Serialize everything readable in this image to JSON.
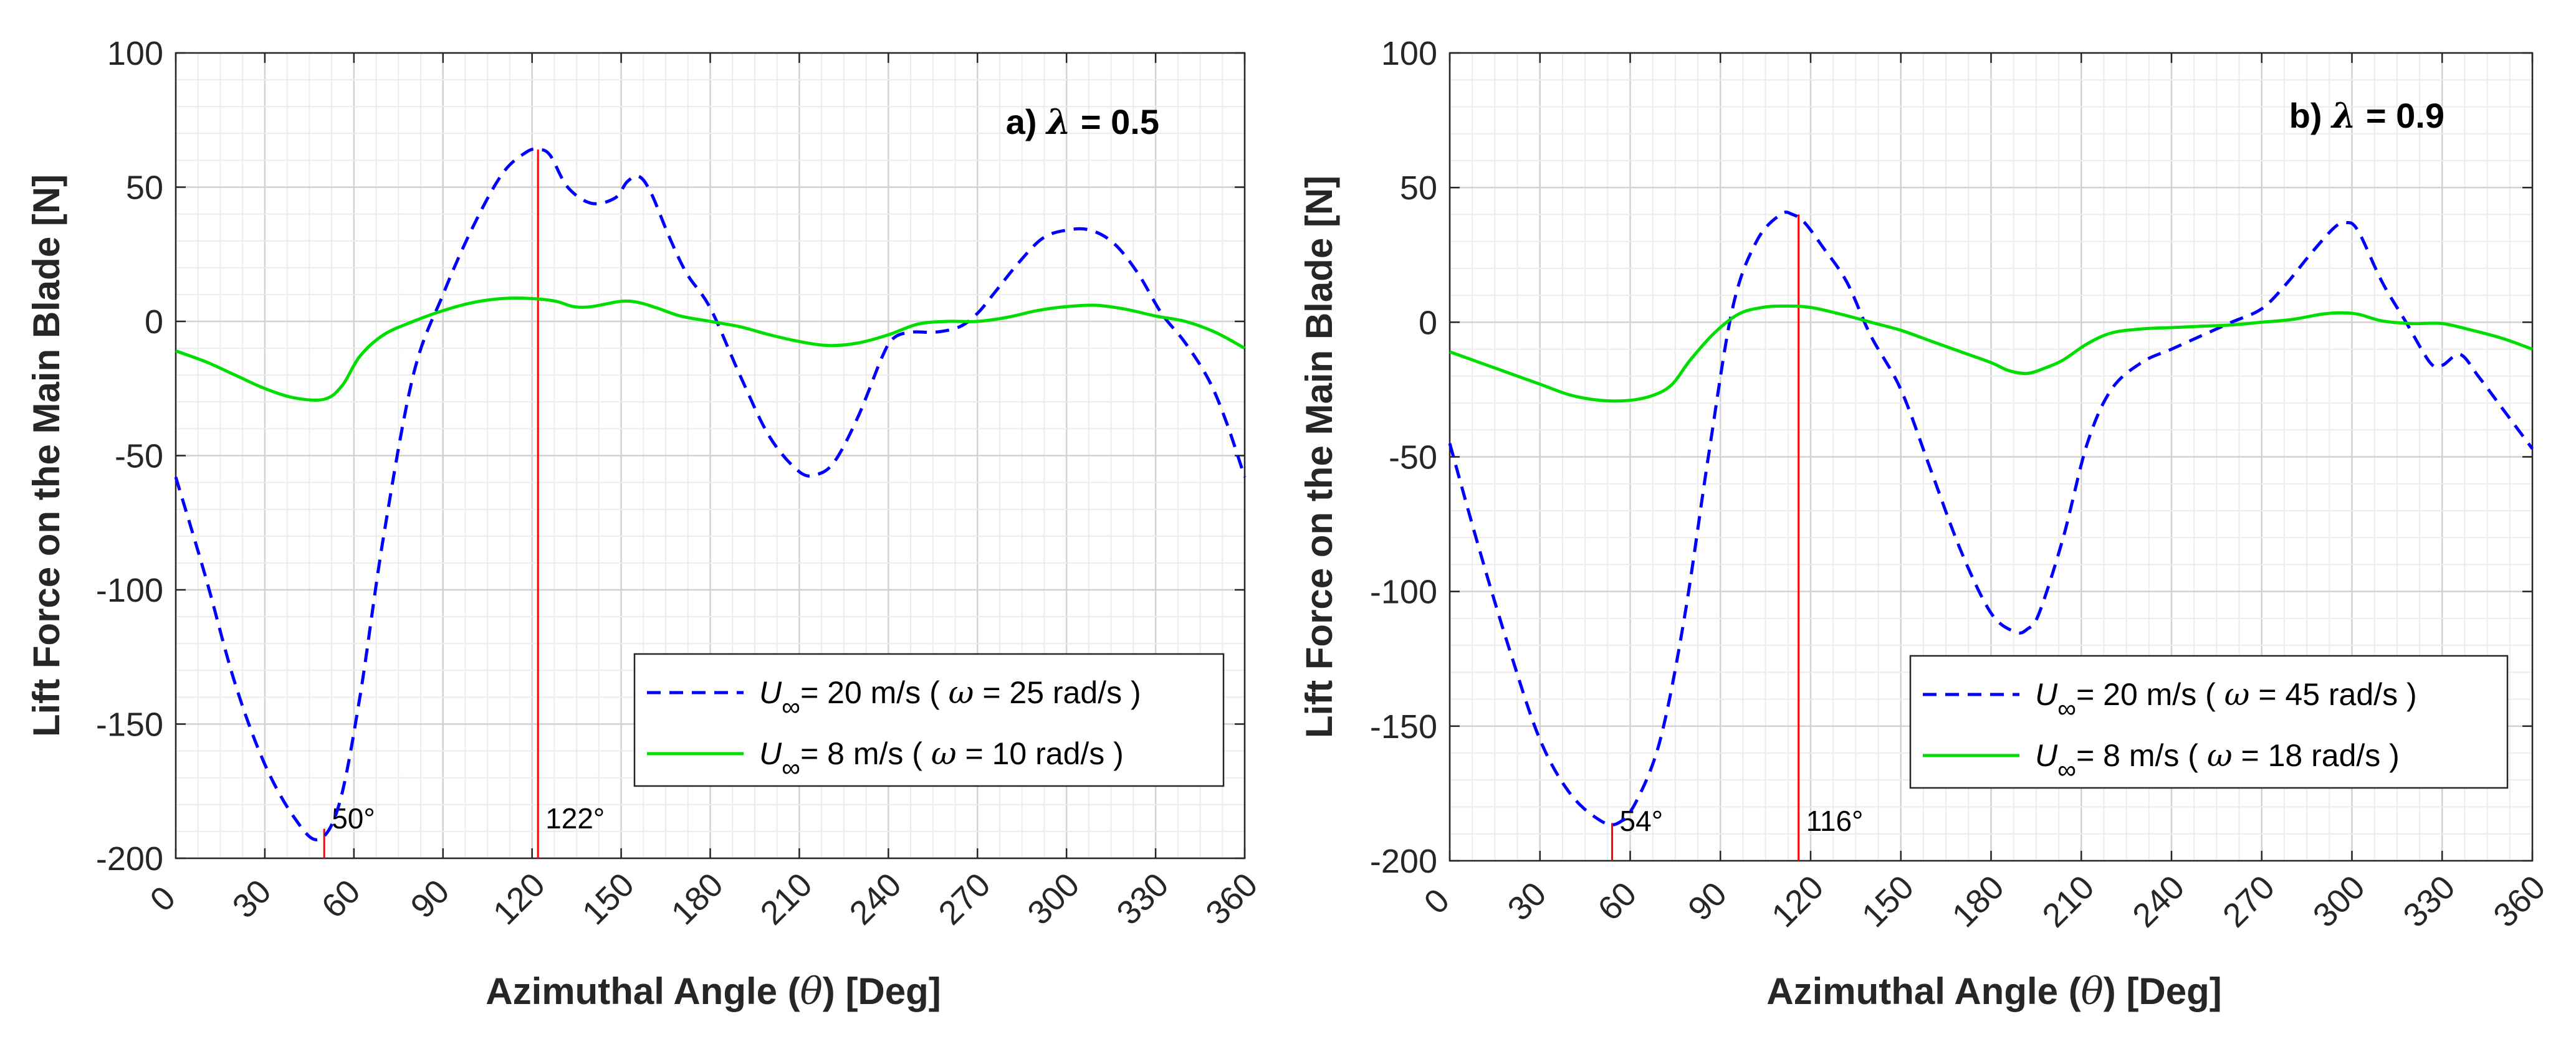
{
  "chart_data": [
    {
      "type": "line",
      "panel_label": "a)",
      "lambda_symbol": "λ",
      "lambda_text": "= 0.5",
      "xlabel_main": "Azimuthal Angle (",
      "xlabel_theta": "θ",
      "xlabel_unit": ")  [Deg]",
      "ylabel": "Lift Force on the Main Blade [N]",
      "xlim": [
        0,
        360
      ],
      "ylim": [
        -200,
        100
      ],
      "x_ticks": [
        0,
        30,
        60,
        90,
        120,
        150,
        180,
        210,
        240,
        270,
        300,
        330,
        360
      ],
      "x_tick_labels": [
        "0",
        "30",
        "60",
        "90",
        "120",
        "150",
        "180",
        "210",
        "240",
        "270",
        "300",
        "330",
        "360"
      ],
      "y_ticks": [
        -200,
        -150,
        -100,
        -50,
        0,
        50,
        100
      ],
      "y_tick_labels": [
        "-200",
        "-150",
        "-100",
        "-50",
        "0",
        "50",
        "100"
      ],
      "grid": true,
      "legend_location": "bottom-right",
      "series": [
        {
          "name": "U∞ = 20 m/s (ω = 25 rad/s)",
          "legend_u": "U",
          "legend_inf": "∞",
          "legend_speed": "= 20 m/s",
          "legend_open": "(",
          "legend_omega": "ω",
          "legend_rate": "= 25 rad/s )",
          "color": "#0000ff",
          "style": "dashed",
          "x": [
            0,
            10,
            20,
            30,
            40,
            48,
            55,
            62,
            70,
            80,
            90,
            100,
            110,
            118,
            122,
            126,
            132,
            140,
            148,
            152,
            156,
            160,
            166,
            172,
            180,
            190,
            200,
            210,
            216,
            222,
            230,
            238,
            242,
            248,
            256,
            264,
            270,
            276,
            284,
            292,
            300,
            308,
            316,
            324,
            332,
            340,
            348,
            354,
            360
          ],
          "values": [
            -58,
            -95,
            -135,
            -165,
            -185,
            -193,
            -180,
            -140,
            -80,
            -20,
            10,
            35,
            55,
            63,
            64,
            62,
            50,
            44,
            46,
            52,
            54,
            48,
            32,
            18,
            5,
            -20,
            -43,
            -56,
            -57,
            -52,
            -35,
            -13,
            -6,
            -4,
            -4,
            -2,
            3,
            11,
            22,
            31,
            34,
            34,
            29,
            18,
            3,
            -8,
            -22,
            -38,
            -58
          ]
        },
        {
          "name": "U∞ = 8 m/s (ω = 10 rad/s)",
          "legend_u": "U",
          "legend_inf": "∞",
          "legend_speed": "=  8 m/s",
          "legend_open": "(",
          "legend_omega": "ω",
          "legend_rate": "= 10 rad/s )",
          "color": "#00dd00",
          "style": "solid",
          "x": [
            0,
            10,
            20,
            30,
            40,
            50,
            56,
            62,
            70,
            80,
            90,
            100,
            110,
            120,
            128,
            134,
            140,
            150,
            156,
            162,
            170,
            180,
            190,
            200,
            210,
            220,
            230,
            240,
            250,
            260,
            270,
            280,
            290,
            300,
            310,
            320,
            330,
            340,
            350,
            360
          ],
          "values": [
            -11,
            -15,
            -20,
            -25,
            -28.5,
            -29,
            -24,
            -13,
            -5,
            0,
            4,
            7,
            8.5,
            8.5,
            7.5,
            5.5,
            5.5,
            7.5,
            7,
            5,
            2,
            0,
            -2,
            -5,
            -7.5,
            -9,
            -8,
            -5,
            -1,
            0,
            0,
            1.5,
            4,
            5.5,
            6,
            4.5,
            2,
            0,
            -4,
            -10
          ]
        }
      ],
      "vertical_markers": [
        {
          "x": 50,
          "y_top": -189,
          "label": "50°"
        },
        {
          "x": 122,
          "y_top": 64,
          "label": "122°"
        }
      ]
    },
    {
      "type": "line",
      "panel_label": "b)",
      "lambda_symbol": "λ",
      "lambda_text": "= 0.9",
      "xlabel_main": "Azimuthal Angle (",
      "xlabel_theta": "θ",
      "xlabel_unit": ")  [Deg]",
      "ylabel": "Lift Force on the Main Blade [N]",
      "xlim": [
        0,
        360
      ],
      "ylim": [
        -200,
        100
      ],
      "x_ticks": [
        0,
        30,
        60,
        90,
        120,
        150,
        180,
        210,
        240,
        270,
        300,
        330,
        360
      ],
      "x_tick_labels": [
        "0",
        "30",
        "60",
        "90",
        "120",
        "150",
        "180",
        "210",
        "240",
        "270",
        "300",
        "330",
        "360"
      ],
      "y_ticks": [
        -200,
        -150,
        -100,
        -50,
        0,
        50,
        100
      ],
      "y_tick_labels": [
        "-200",
        "-150",
        "-100",
        "-50",
        "0",
        "50",
        "100"
      ],
      "grid": true,
      "legend_location": "bottom-right",
      "series": [
        {
          "name": "U∞ = 20 m/s (ω = 45 rad/s)",
          "legend_u": "U",
          "legend_inf": "∞",
          "legend_speed": "= 20 m/s",
          "legend_open": "(",
          "legend_omega": "ω",
          "legend_rate": "= 45 rad/s )",
          "color": "#0000ff",
          "style": "dashed",
          "x": [
            0,
            10,
            20,
            30,
            40,
            50,
            56,
            62,
            70,
            78,
            86,
            94,
            102,
            110,
            114,
            118,
            124,
            132,
            140,
            150,
            160,
            170,
            180,
            188,
            192,
            196,
            204,
            212,
            220,
            230,
            240,
            250,
            260,
            270,
            278,
            286,
            294,
            298,
            302,
            310,
            318,
            326,
            330,
            336,
            342,
            350,
            360
          ],
          "values": [
            -45,
            -85,
            -122,
            -155,
            -175,
            -185,
            -186,
            -178,
            -155,
            -110,
            -50,
            5,
            30,
            40,
            40,
            37,
            28,
            15,
            -5,
            -25,
            -55,
            -85,
            -108,
            -115,
            -114,
            -108,
            -80,
            -45,
            -25,
            -15,
            -10,
            -5,
            0,
            5,
            14,
            25,
            35,
            37,
            34,
            15,
            0,
            -15,
            -16,
            -12,
            -20,
            -32,
            -47
          ]
        },
        {
          "name": "U∞ = 8 m/s (ω = 18 rad/s)",
          "legend_u": "U",
          "legend_inf": "∞",
          "legend_speed": "=  8 m/s",
          "legend_open": "(",
          "legend_omega": "ω",
          "legend_rate": "= 18 rad/s )",
          "color": "#00dd00",
          "style": "solid",
          "x": [
            0,
            10,
            20,
            30,
            40,
            50,
            60,
            68,
            74,
            80,
            88,
            96,
            104,
            112,
            120,
            130,
            140,
            150,
            160,
            170,
            180,
            186,
            192,
            198,
            204,
            212,
            220,
            230,
            240,
            250,
            260,
            270,
            280,
            290,
            296,
            302,
            310,
            320,
            330,
            340,
            350,
            360
          ],
          "values": [
            -11,
            -15,
            -19,
            -23,
            -27,
            -29,
            -29,
            -27,
            -23,
            -14,
            -4,
            3,
            5.5,
            6,
            5.5,
            3,
            0,
            -3,
            -7,
            -11,
            -15,
            -18,
            -19,
            -17,
            -14,
            -8,
            -4,
            -2.5,
            -2,
            -1.5,
            -1,
            0,
            1,
            3,
            3.5,
            3,
            0.5,
            -0.5,
            -0.5,
            -3,
            -6,
            -10
          ]
        }
      ],
      "vertical_markers": [
        {
          "x": 54,
          "y_top": -186,
          "label": "54°"
        },
        {
          "x": 116,
          "y_top": 40,
          "label": "116°"
        }
      ]
    }
  ]
}
